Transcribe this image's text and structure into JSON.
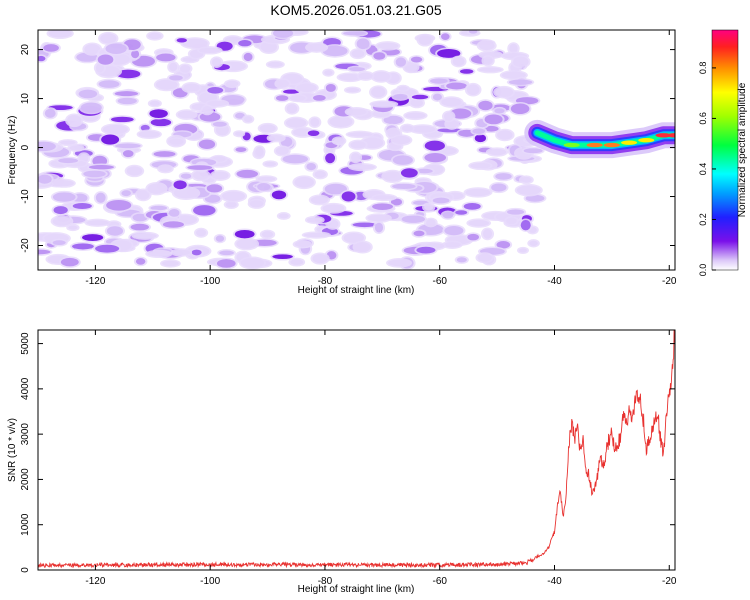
{
  "title": "KOM5.2026.051.03.21.G05",
  "chart_data": [
    {
      "type": "heatmap",
      "title": "",
      "xlabel": "Height of straight line (km)",
      "ylabel": "Frequency (Hz)",
      "xlim": [
        -130,
        -19
      ],
      "ylim": [
        -25,
        24
      ],
      "xticks": [
        -120,
        -100,
        -80,
        -60,
        -40,
        -20
      ],
      "yticks": [
        -20,
        -10,
        0,
        10,
        20
      ],
      "colorbar": {
        "label": "Normalized spectral amplitude",
        "range": [
          0,
          0.95
        ],
        "ticks": [
          0,
          0.2,
          0.4,
          0.6,
          0.8
        ],
        "tick_labels": [
          "0.0",
          "0.2",
          "0.4",
          "0.6",
          "0.8"
        ]
      },
      "description_series": [
        {
          "name": "noise (low amplitude, purple)",
          "x_range": [
            -130,
            -43
          ],
          "freq_range": [
            -24,
            24
          ],
          "amplitude_range": [
            0.0,
            0.15
          ]
        },
        {
          "name": "signal ridge",
          "x": [
            -43,
            -40,
            -37,
            -33,
            -30,
            -27,
            -24,
            -21,
            -19
          ],
          "freq": [
            3,
            1.5,
            0.5,
            0.5,
            0.5,
            1.0,
            1.5,
            2.5,
            2.5
          ],
          "amplitude": [
            0.15,
            0.2,
            0.45,
            0.9,
            0.9,
            0.8,
            0.75,
            0.95,
            0.95
          ]
        }
      ]
    },
    {
      "type": "line",
      "title": "",
      "xlabel": "Height of straight line (km)",
      "ylabel": "SNR (10 * v/v)",
      "xlim": [
        -130,
        -19
      ],
      "ylim": [
        0,
        5300
      ],
      "xticks": [
        -120,
        -100,
        -80,
        -60,
        -40,
        -20
      ],
      "yticks": [
        0,
        1000,
        2000,
        3000,
        4000,
        5000
      ],
      "series": [
        {
          "name": "SNR",
          "color": "#e8312f",
          "x": [
            -130,
            -120,
            -100,
            -80,
            -60,
            -50,
            -45,
            -42,
            -41,
            -40,
            -39.5,
            -39,
            -38.5,
            -38,
            -37.5,
            -37,
            -36.5,
            -36,
            -35.5,
            -35,
            -34.5,
            -34,
            -33.5,
            -33,
            -32.5,
            -32,
            -31.5,
            -31,
            -30.5,
            -30,
            -29.5,
            -29,
            -28.5,
            -28,
            -27.5,
            -27,
            -26.5,
            -26,
            -25.5,
            -25,
            -24.5,
            -24,
            -23.5,
            -23,
            -22.5,
            -22,
            -21.5,
            -21,
            -20.5,
            -20,
            -19.5,
            -19
          ],
          "values": [
            100,
            110,
            120,
            115,
            110,
            120,
            150,
            350,
            500,
            850,
            1400,
            1700,
            1200,
            1600,
            2700,
            3300,
            2900,
            3200,
            2600,
            2900,
            2200,
            2100,
            1700,
            1800,
            2100,
            2500,
            2300,
            2600,
            2900,
            3000,
            2700,
            2800,
            2900,
            3400,
            3200,
            3600,
            3300,
            3700,
            3750,
            3800,
            3300,
            2600,
            2900,
            3100,
            3300,
            3400,
            2900,
            2500,
            3500,
            3900,
            4300,
            5400
          ]
        }
      ]
    }
  ]
}
